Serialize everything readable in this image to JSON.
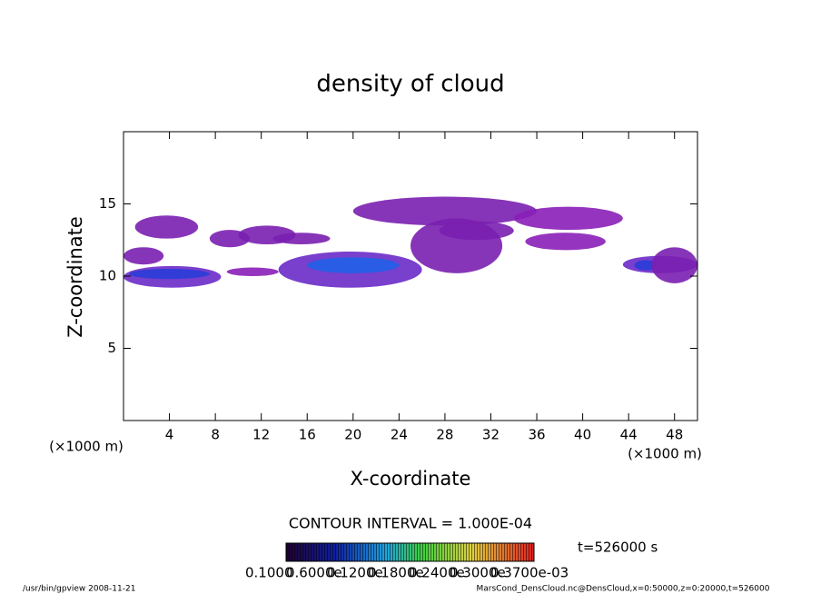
{
  "chart_data": {
    "type": "contour",
    "title": "density of cloud",
    "x_label": "X-coordinate",
    "y_label": "Z-coordinate",
    "x_unit": "(×1000 m)",
    "y_unit": "(×1000 m)",
    "xlim": [
      0,
      50
    ],
    "ylim": [
      0,
      20
    ],
    "xticks": [
      4,
      8,
      12,
      16,
      20,
      24,
      28,
      32,
      36,
      40,
      44,
      48
    ],
    "yticks": [
      5,
      10,
      15
    ],
    "regions": [
      {
        "x": [
          0,
          3.5
        ],
        "z": [
          10.8,
          12
        ],
        "color": "#7a1fb0"
      },
      {
        "x": [
          0,
          8.5
        ],
        "z": [
          9.2,
          10.7
        ],
        "color": "#6a2ac8"
      },
      {
        "x": [
          0.5,
          7.5
        ],
        "z": [
          9.8,
          10.5
        ],
        "color": "#2a3cd8"
      },
      {
        "x": [
          1,
          6.5
        ],
        "z": [
          12.6,
          14.2
        ],
        "color": "#7a1fb0"
      },
      {
        "x": [
          7.5,
          11
        ],
        "z": [
          12,
          13.2
        ],
        "color": "#7a1fb0"
      },
      {
        "x": [
          10,
          15
        ],
        "z": [
          12.2,
          13.5
        ],
        "color": "#7a1fb0"
      },
      {
        "x": [
          13,
          18
        ],
        "z": [
          12.2,
          13
        ],
        "color": "#7a1fb0"
      },
      {
        "x": [
          9,
          13.5
        ],
        "z": [
          10,
          10.6
        ],
        "color": "#8a1fb8"
      },
      {
        "x": [
          13.5,
          26
        ],
        "z": [
          9.2,
          11.7
        ],
        "color": "#6a2ac8"
      },
      {
        "x": [
          16,
          24
        ],
        "z": [
          10.2,
          11.3
        ],
        "color": "#2060e8"
      },
      {
        "x": [
          20,
          36
        ],
        "z": [
          13.5,
          15.5
        ],
        "color": "#7a1fb0"
      },
      {
        "x": [
          25,
          33
        ],
        "z": [
          10.2,
          14
        ],
        "color": "#7a1fb0"
      },
      {
        "x": [
          27.5,
          34
        ],
        "z": [
          12.5,
          13.8
        ],
        "color": "#7a1fb0"
      },
      {
        "x": [
          34,
          43.5
        ],
        "z": [
          13.2,
          14.8
        ],
        "color": "#8a1fb8"
      },
      {
        "x": [
          35,
          42
        ],
        "z": [
          11.8,
          13
        ],
        "color": "#8a1fb8"
      },
      {
        "x": [
          43.5,
          50
        ],
        "z": [
          10.2,
          11.4
        ],
        "color": "#6a2ac8"
      },
      {
        "x": [
          44.5,
          46.5
        ],
        "z": [
          10.4,
          11.1
        ],
        "color": "#2a3cd8"
      },
      {
        "x": [
          46,
          50
        ],
        "z": [
          9.5,
          12
        ],
        "color": "#7a1fb0"
      }
    ],
    "contour_interval": "CONTOUR INTERVAL = 1.000E-04",
    "colorbar_labels": [
      "0.1000",
      "0.6000e",
      "0.1200e",
      "0.1800e",
      "0.2400e",
      "0.3000e",
      "0.3700e-03"
    ],
    "time_label": "t=526000 s",
    "footer_left": "/usr/bin/gpview   2008-11-21",
    "footer_right": "MarsCond_DensCloud.nc@DensCloud,x=0:50000,z=0:20000,t=526000"
  }
}
